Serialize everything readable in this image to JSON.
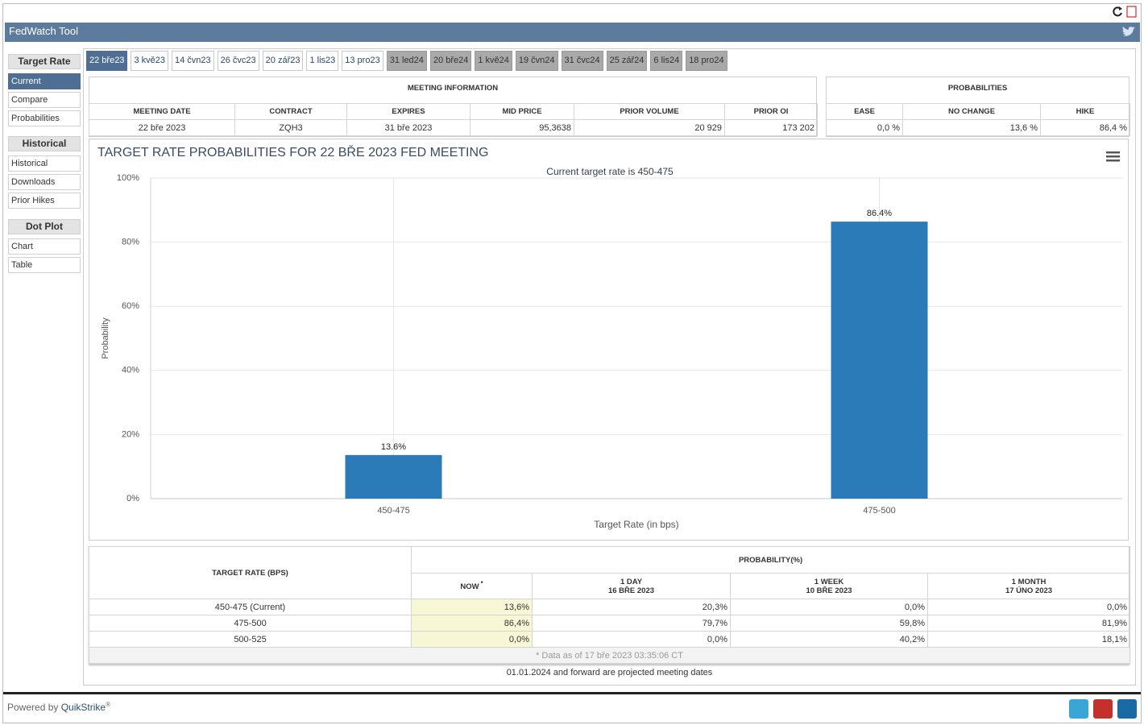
{
  "header": {
    "title": "FedWatch Tool"
  },
  "sidebar": [
    {
      "title": "Target Rate",
      "items": [
        "Current",
        "Compare",
        "Probabilities"
      ]
    },
    {
      "title": "Historical",
      "items": [
        "Historical",
        "Downloads",
        "Prior Hikes"
      ]
    },
    {
      "title": "Dot Plot",
      "items": [
        "Chart",
        "Table"
      ]
    }
  ],
  "tabs": [
    "22 bře23",
    "3 kvě23",
    "14 čvn23",
    "26 čvc23",
    "20 zář23",
    "1 lis23",
    "13 pro23",
    "31 led24",
    "20 bře24",
    "1 kvě24",
    "19 čvn24",
    "31 čvc24",
    "25 zář24",
    "6 lis24",
    "18 pro24"
  ],
  "meeting_info": {
    "title": "MEETING INFORMATION",
    "headers": [
      "MEETING DATE",
      "CONTRACT",
      "EXPIRES",
      "MID PRICE",
      "PRIOR VOLUME",
      "PRIOR OI"
    ],
    "row": [
      "22 bře 2023",
      "ZQH3",
      "31 bře 2023",
      "95,3638",
      "20 929",
      "173 202"
    ]
  },
  "probabilities": {
    "title": "PROBABILITIES",
    "headers": [
      "EASE",
      "NO CHANGE",
      "HIKE"
    ],
    "row": [
      "0,0 %",
      "13,6 %",
      "86,4 %"
    ]
  },
  "chart_data": {
    "type": "bar",
    "title": "TARGET RATE PROBABILITIES FOR 22 BŘE 2023 FED MEETING",
    "subtitle": "Current target rate is 450-475",
    "categories": [
      "450-475",
      "475-500"
    ],
    "values": [
      13.6,
      86.4
    ],
    "value_labels": [
      "13.6%",
      "86.4%"
    ],
    "color": "#2b7bb9",
    "x_label": "Target Rate (in bps)",
    "y_label": "Probability",
    "ylim": [
      0,
      100
    ],
    "yticks": [
      {
        "value": 0,
        "label": "0%"
      },
      {
        "value": 20,
        "label": "20%"
      },
      {
        "value": 40,
        "label": "40%"
      },
      {
        "value": 60,
        "label": "60%"
      },
      {
        "value": 80,
        "label": "80%"
      },
      {
        "value": 100,
        "label": "100%"
      }
    ],
    "grid": true
  },
  "prob_table": {
    "rate_header": "TARGET RATE (BPS)",
    "group_header": "PROBABILITY(%)",
    "columns": [
      {
        "label": "NOW",
        "mark": "*"
      },
      {
        "label": "1 DAY",
        "date": "16 BŘE 2023"
      },
      {
        "label": "1 WEEK",
        "date": "10 BŘE 2023"
      },
      {
        "label": "1 MONTH",
        "date": "17 ÚNO 2023"
      }
    ],
    "rows": [
      {
        "rate": "450-475 (Current)",
        "values": [
          "13,6%",
          "20,3%",
          "0,0%",
          "0,0%"
        ]
      },
      {
        "rate": "475-500",
        "values": [
          "86,4%",
          "79,7%",
          "59,8%",
          "81,9%"
        ]
      },
      {
        "rate": "500-525",
        "values": [
          "0,0%",
          "0,0%",
          "40,2%",
          "18,1%"
        ]
      }
    ],
    "footnote": "* Data as of 17 bře 2023 03:35:06 CT"
  },
  "note": "01.01.2024 and forward are projected meeting dates",
  "footer": {
    "powered_by": "Powered by",
    "brand": "QuikStrike",
    "mark": "®"
  }
}
